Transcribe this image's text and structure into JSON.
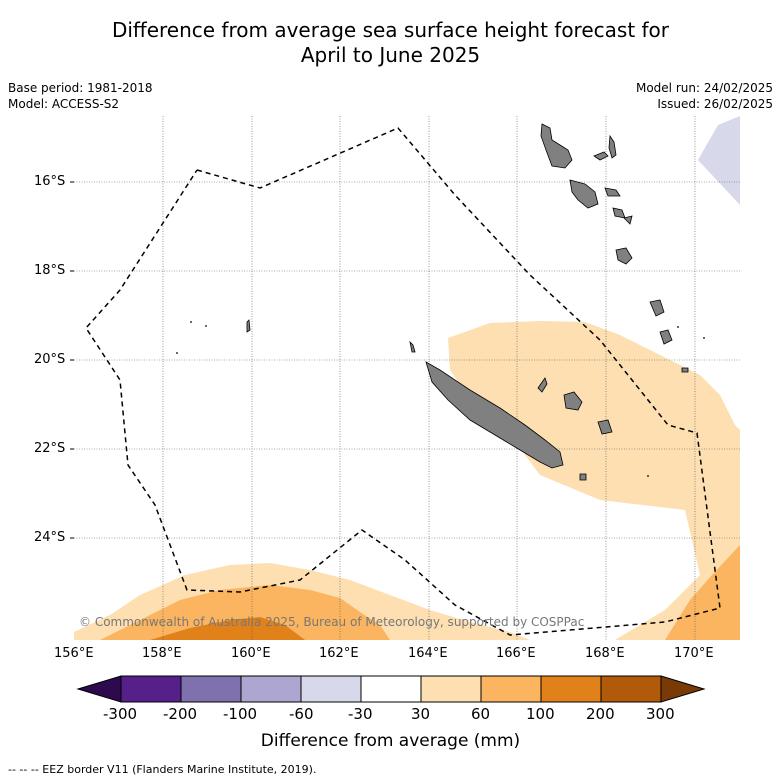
{
  "title_line1": "Difference from average sea surface height forecast for",
  "title_line2": "April to June 2025",
  "meta": {
    "base_period": "Base period: 1981-2018",
    "model": "Model: ACCESS-S2",
    "model_run": "Model run: 24/02/2025",
    "issued": "Issued: 26/02/2025"
  },
  "copyright": "© Commonwealth of Australia 2025, Bureau of Meteorology, supported by COSPPac",
  "lat_ticks": [
    "16°S",
    "18°S",
    "20°S",
    "22°S",
    "24°S"
  ],
  "lon_ticks": [
    "156°E",
    "158°E",
    "160°E",
    "162°E",
    "164°E",
    "166°E",
    "168°E",
    "170°E"
  ],
  "colorbar": {
    "title": "Difference from average (mm)",
    "labels": [
      "-300",
      "-200",
      "-100",
      "-60",
      "-30",
      "30",
      "60",
      "100",
      "200",
      "300"
    ],
    "colors": [
      "#56208a",
      "#7f71ae",
      "#ada6d0",
      "#d8d8eb",
      "#ffffff",
      "#fddfb2",
      "#fbb45f",
      "#e0811a",
      "#b05a0a"
    ],
    "under_color": "#2d0a4e",
    "over_color": "#7a3a06"
  },
  "colors": {
    "land": "#808080",
    "grid": "#555555"
  },
  "footer": "--  --  -- EEZ border V11 (Flanders Marine Institute, 2019)."
}
